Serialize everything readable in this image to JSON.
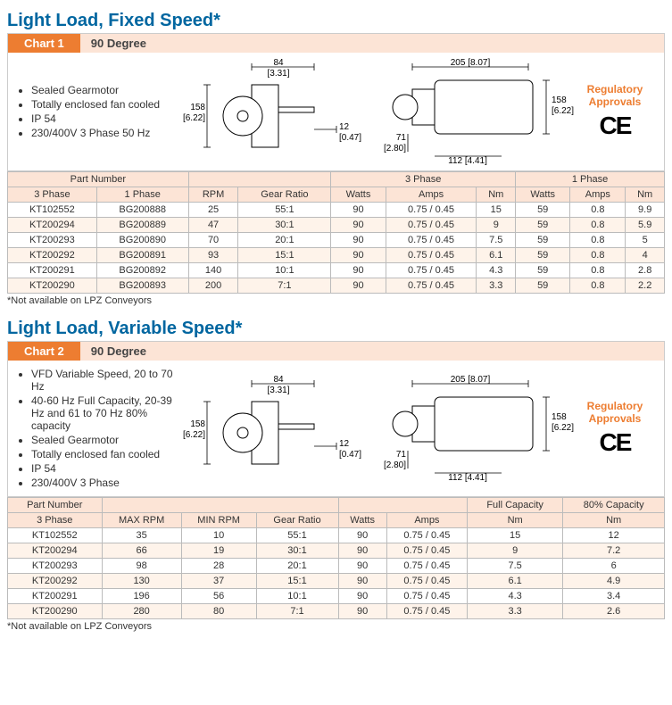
{
  "chart1": {
    "title": "Light Load, Fixed Speed*",
    "label": "Chart 1",
    "sub": "90 Degree",
    "bullets": [
      "Sealed Gearmotor",
      "Totally enclosed fan cooled",
      "IP 54",
      "230/400V 3 Phase 50 Hz"
    ],
    "reg": "Regulatory Approvals",
    "dims": {
      "w84": "84",
      "w84b": "[3.31]",
      "h158": "158",
      "h158b": "[6.22]",
      "s12": "12",
      "s12b": "[0.47]",
      "w205": "205 [8.07]",
      "h71": "71",
      "h71b": "[2.80]",
      "w112": "112 [4.41]"
    },
    "groups": [
      {
        "label": "Part Number",
        "span": 2
      },
      {
        "label": "",
        "span": 2
      },
      {
        "label": "3 Phase",
        "span": 3
      },
      {
        "label": "1 Phase",
        "span": 3
      }
    ],
    "headers": [
      "3 Phase",
      "1 Phase",
      "RPM",
      "Gear Ratio",
      "Watts",
      "Amps",
      "Nm",
      "Watts",
      "Amps",
      "Nm"
    ],
    "rows": [
      [
        "KT102552",
        "BG200888",
        "25",
        "55:1",
        "90",
        "0.75 / 0.45",
        "15",
        "59",
        "0.8",
        "9.9"
      ],
      [
        "KT200294",
        "BG200889",
        "47",
        "30:1",
        "90",
        "0.75 / 0.45",
        "9",
        "59",
        "0.8",
        "5.9"
      ],
      [
        "KT200293",
        "BG200890",
        "70",
        "20:1",
        "90",
        "0.75 / 0.45",
        "7.5",
        "59",
        "0.8",
        "5"
      ],
      [
        "KT200292",
        "BG200891",
        "93",
        "15:1",
        "90",
        "0.75 / 0.45",
        "6.1",
        "59",
        "0.8",
        "4"
      ],
      [
        "KT200291",
        "BG200892",
        "140",
        "10:1",
        "90",
        "0.75 / 0.45",
        "4.3",
        "59",
        "0.8",
        "2.8"
      ],
      [
        "KT200290",
        "BG200893",
        "200",
        "7:1",
        "90",
        "0.75 / 0.45",
        "3.3",
        "59",
        "0.8",
        "2.2"
      ]
    ],
    "foot": "*Not available on LPZ Conveyors"
  },
  "chart2": {
    "title": "Light Load, Variable Speed*",
    "label": "Chart 2",
    "sub": "90 Degree",
    "bullets": [
      "VFD Variable Speed, 20 to 70 Hz",
      "40-60 Hz Full Capacity, 20-39 Hz and 61 to 70 Hz 80% capacity",
      "Sealed Gearmotor",
      "Totally enclosed fan cooled",
      "IP 54",
      "230/400V 3 Phase"
    ],
    "reg": "Regulatory Approvals",
    "groups": [
      {
        "label": "Part Number",
        "span": 1
      },
      {
        "label": "",
        "span": 3
      },
      {
        "label": "",
        "span": 2
      },
      {
        "label": "Full Capacity",
        "span": 1
      },
      {
        "label": "80% Capacity",
        "span": 1
      }
    ],
    "headers": [
      "3 Phase",
      "MAX RPM",
      "MIN RPM",
      "Gear Ratio",
      "Watts",
      "Amps",
      "Nm",
      "Nm"
    ],
    "rows": [
      [
        "KT102552",
        "35",
        "10",
        "55:1",
        "90",
        "0.75 / 0.45",
        "15",
        "12"
      ],
      [
        "KT200294",
        "66",
        "19",
        "30:1",
        "90",
        "0.75 / 0.45",
        "9",
        "7.2"
      ],
      [
        "KT200293",
        "98",
        "28",
        "20:1",
        "90",
        "0.75 / 0.45",
        "7.5",
        "6"
      ],
      [
        "KT200292",
        "130",
        "37",
        "15:1",
        "90",
        "0.75 / 0.45",
        "6.1",
        "4.9"
      ],
      [
        "KT200291",
        "196",
        "56",
        "10:1",
        "90",
        "0.75 / 0.45",
        "4.3",
        "3.4"
      ],
      [
        "KT200290",
        "280",
        "80",
        "7:1",
        "90",
        "0.75 / 0.45",
        "3.3",
        "2.6"
      ]
    ],
    "foot": "*Not available on LPZ Conveyors"
  }
}
